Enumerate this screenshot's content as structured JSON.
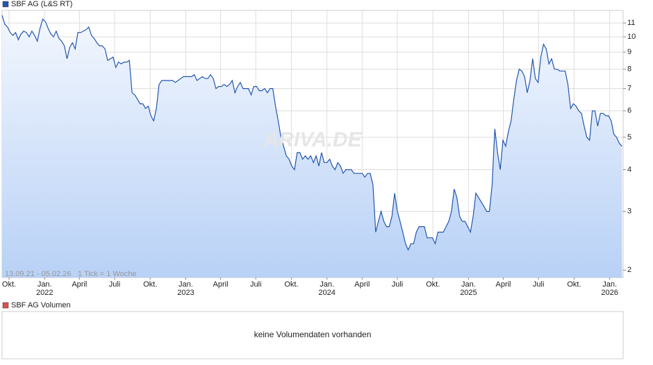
{
  "chart_data": {
    "type": "line",
    "log_scale": true,
    "grid": true,
    "range_label": "13.09.21 - 05.02.26",
    "tick_label": "1 Tick = 1 Woche",
    "watermark": "ARIVA.DE",
    "series": [
      {
        "name": "SBF AG (L&S RT)",
        "color": "#2255b0",
        "values": [
          11.6,
          10.9,
          10.7,
          10.3,
          10.1,
          10.3,
          9.8,
          10.2,
          10.4,
          10.3,
          10.0,
          10.4,
          10.1,
          9.7,
          10.6,
          11.3,
          11.1,
          10.6,
          10.2,
          10.0,
          10.4,
          9.9,
          9.7,
          9.4,
          8.6,
          9.3,
          9.6,
          9.2,
          10.3,
          10.3,
          10.4,
          10.5,
          10.7,
          10.1,
          9.9,
          9.6,
          9.4,
          9.4,
          9.2,
          8.5,
          8.6,
          8.7,
          8.1,
          8.4,
          8.3,
          8.4,
          8.4,
          8.5,
          6.8,
          6.7,
          6.5,
          6.3,
          6.3,
          6.1,
          6.2,
          5.8,
          5.6,
          6.1,
          7.2,
          7.4,
          7.4,
          7.4,
          7.4,
          7.4,
          7.3,
          7.4,
          7.5,
          7.6,
          7.6,
          7.6,
          7.6,
          7.7,
          7.4,
          7.5,
          7.6,
          7.5,
          7.5,
          7.7,
          7.5,
          7.0,
          7.1,
          7.1,
          7.2,
          7.1,
          7.2,
          7.4,
          6.8,
          7.1,
          7.3,
          7.0,
          7.0,
          7.0,
          6.7,
          7.1,
          7.1,
          6.9,
          6.9,
          7.0,
          6.8,
          7.0,
          7.0,
          6.2,
          5.6,
          5.0,
          4.7,
          4.4,
          4.3,
          4.1,
          4.0,
          4.5,
          4.5,
          4.3,
          4.4,
          4.3,
          4.4,
          4.2,
          4.4,
          4.1,
          4.5,
          4.2,
          4.2,
          4.3,
          4.1,
          4.0,
          4.2,
          4.1,
          3.9,
          4.0,
          4.0,
          4.0,
          3.9,
          3.9,
          3.9,
          3.9,
          3.8,
          3.9,
          3.9,
          3.6,
          2.6,
          2.8,
          3.0,
          2.8,
          2.7,
          2.7,
          2.9,
          3.4,
          3.0,
          2.8,
          2.6,
          2.4,
          2.3,
          2.4,
          2.4,
          2.6,
          2.7,
          2.7,
          2.7,
          2.5,
          2.5,
          2.5,
          2.4,
          2.6,
          2.6,
          2.6,
          2.7,
          2.8,
          3.0,
          3.5,
          3.3,
          2.9,
          2.8,
          2.8,
          2.7,
          2.6,
          2.9,
          3.4,
          3.3,
          3.2,
          3.1,
          3.0,
          3.0,
          3.6,
          5.3,
          4.5,
          4.0,
          4.9,
          4.7,
          5.2,
          5.6,
          6.5,
          7.4,
          8.0,
          7.9,
          7.6,
          6.8,
          7.4,
          8.6,
          7.5,
          7.3,
          8.7,
          9.5,
          9.2,
          8.3,
          8.6,
          8.0,
          8.0,
          7.9,
          7.9,
          7.9,
          7.2,
          6.1,
          6.3,
          6.2,
          6.0,
          5.9,
          5.4,
          5.0,
          4.9,
          6.0,
          6.0,
          5.4,
          5.9,
          5.9,
          5.8,
          5.8,
          5.6,
          5.1,
          5.0,
          4.8,
          4.7
        ]
      }
    ],
    "xlim": [
      0,
      229.4
    ],
    "xticks": [
      {
        "value": 2.57,
        "label": "Okt."
      },
      {
        "value": 15.71,
        "label": "Jan."
      },
      {
        "value": 28.57,
        "label": "April"
      },
      {
        "value": 41.57,
        "label": "Juli"
      },
      {
        "value": 54.71,
        "label": "Okt."
      },
      {
        "value": 67.86,
        "label": "Jan."
      },
      {
        "value": 80.71,
        "label": "April"
      },
      {
        "value": 93.71,
        "label": "Juli"
      },
      {
        "value": 106.86,
        "label": "Okt."
      },
      {
        "value": 120,
        "label": "Jan."
      },
      {
        "value": 133,
        "label": "April"
      },
      {
        "value": 146,
        "label": "Juli"
      },
      {
        "value": 159.14,
        "label": "Okt."
      },
      {
        "value": 172.29,
        "label": "Jan."
      },
      {
        "value": 185.14,
        "label": "April"
      },
      {
        "value": 198.14,
        "label": "Juli"
      },
      {
        "value": 211.29,
        "label": "Okt."
      },
      {
        "value": 224.43,
        "label": "Jan."
      }
    ],
    "xticks_years": [
      {
        "value": 15.71,
        "label": "2022"
      },
      {
        "value": 67.86,
        "label": "2023"
      },
      {
        "value": 120,
        "label": "2024"
      },
      {
        "value": 172.29,
        "label": "2025"
      },
      {
        "value": 224.43,
        "label": "2026"
      }
    ],
    "ylim": [
      1.9,
      12
    ],
    "yticks": [
      2,
      3,
      4,
      5,
      6,
      7,
      8,
      9,
      10,
      11
    ]
  },
  "volume_panel": {
    "title": "SBF AG Volumen",
    "color": "#d9534f",
    "message": "keine Volumendaten vorhanden"
  }
}
